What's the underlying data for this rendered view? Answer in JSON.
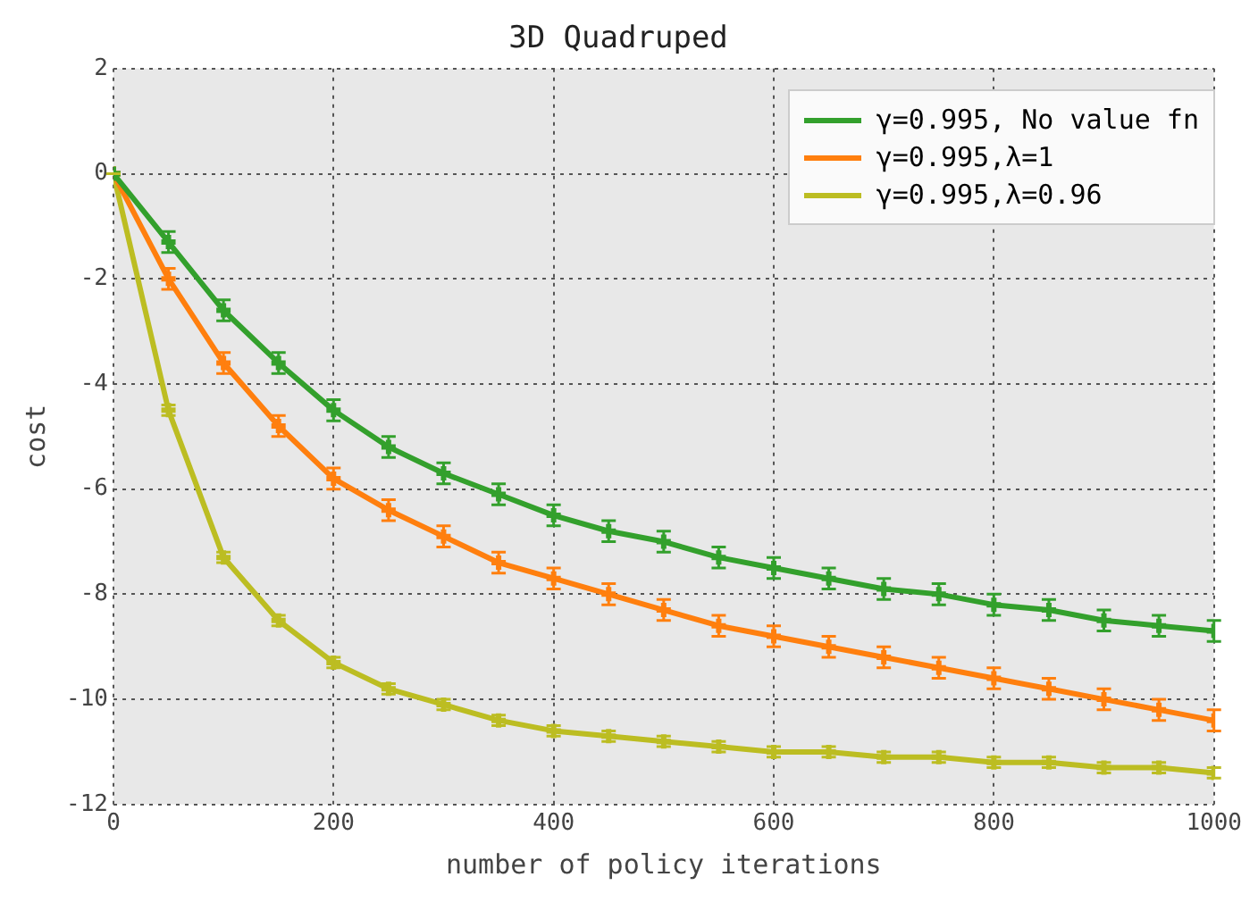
{
  "chart_data": {
    "type": "line",
    "title": "3D Quadruped",
    "xlabel": "number of policy iterations",
    "ylabel": "cost",
    "x": [
      0,
      50,
      100,
      150,
      200,
      250,
      300,
      350,
      400,
      450,
      500,
      550,
      600,
      650,
      700,
      750,
      800,
      850,
      900,
      950,
      1000
    ],
    "xlim": [
      0,
      1000
    ],
    "xticks": [
      0,
      200,
      400,
      600,
      800,
      1000
    ],
    "ylim": [
      -12,
      2
    ],
    "yticks": [
      -12,
      -10,
      -8,
      -6,
      -4,
      -2,
      0,
      2
    ],
    "grid": true,
    "legend": "top right",
    "marker": "cross",
    "series": [
      {
        "name": "γ=0.995, No value fn",
        "color": "#33a02c",
        "values": [
          0,
          -1.3,
          -2.6,
          -3.6,
          -4.5,
          -5.2,
          -5.7,
          -6.1,
          -6.5,
          -6.8,
          -7.0,
          -7.3,
          -7.5,
          -7.7,
          -7.9,
          -8.0,
          -8.2,
          -8.3,
          -8.5,
          -8.6,
          -8.7
        ],
        "errors": [
          0,
          0.2,
          0.2,
          0.2,
          0.2,
          0.2,
          0.2,
          0.2,
          0.2,
          0.2,
          0.2,
          0.2,
          0.2,
          0.2,
          0.2,
          0.2,
          0.2,
          0.2,
          0.2,
          0.2,
          0.2
        ]
      },
      {
        "name": "γ=0.995,λ=1",
        "color": "#ff7f0e",
        "values": [
          0,
          -2.0,
          -3.6,
          -4.8,
          -5.8,
          -6.4,
          -6.9,
          -7.4,
          -7.7,
          -8.0,
          -8.3,
          -8.6,
          -8.8,
          -9.0,
          -9.2,
          -9.4,
          -9.6,
          -9.8,
          -10.0,
          -10.2,
          -10.4
        ],
        "errors": [
          0,
          0.2,
          0.2,
          0.2,
          0.2,
          0.2,
          0.2,
          0.2,
          0.2,
          0.2,
          0.2,
          0.2,
          0.2,
          0.2,
          0.2,
          0.2,
          0.2,
          0.2,
          0.2,
          0.2,
          0.2
        ]
      },
      {
        "name": "γ=0.995,λ=0.96",
        "color": "#bcbd22",
        "values": [
          0,
          -4.5,
          -7.3,
          -8.5,
          -9.3,
          -9.8,
          -10.1,
          -10.4,
          -10.6,
          -10.7,
          -10.8,
          -10.9,
          -11.0,
          -11.0,
          -11.1,
          -11.1,
          -11.2,
          -11.2,
          -11.3,
          -11.3,
          -11.4
        ],
        "errors": [
          0,
          0.1,
          0.1,
          0.1,
          0.1,
          0.1,
          0.1,
          0.1,
          0.1,
          0.1,
          0.1,
          0.1,
          0.1,
          0.1,
          0.1,
          0.1,
          0.1,
          0.1,
          0.1,
          0.1,
          0.1
        ]
      }
    ]
  }
}
